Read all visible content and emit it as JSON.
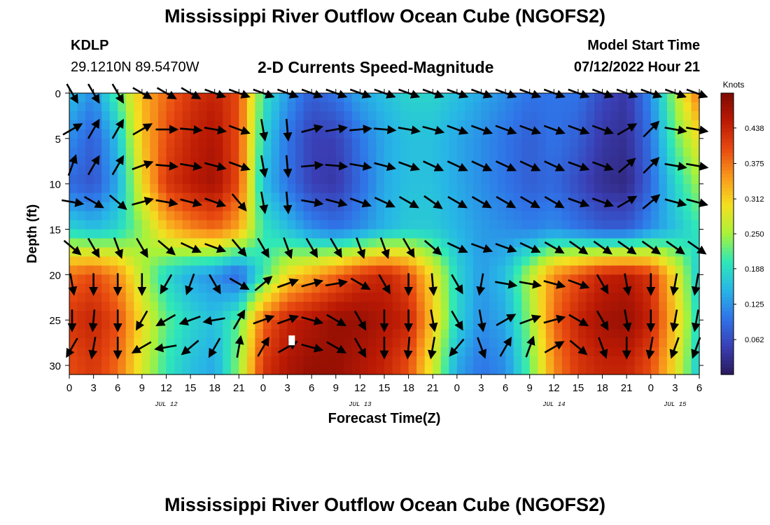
{
  "header": {
    "title": "Mississippi River Outflow Ocean Cube (NGOFS2)",
    "station": "KDLP",
    "coords": "29.1210N  89.5470W",
    "subtitle": "2-D Currents Speed-Magnitude",
    "model_start_label": "Model Start Time",
    "model_start_value": "07/12/2022 Hour 21"
  },
  "footer": {
    "title": "Mississippi River Outflow Ocean Cube (NGOFS2)"
  },
  "chart_data": {
    "type": "heatmap",
    "title": "2-D Currents Speed-Magnitude",
    "xlabel": "Forecast Time(Z)",
    "ylabel": "Depth (ft)",
    "x_unit": "hours from 07/12/2022 00Z",
    "xlim": [
      0,
      78
    ],
    "ylim": [
      0,
      31
    ],
    "y_inverted": true,
    "x_tick_labels": [
      "0",
      "3",
      "6",
      "9",
      "12",
      "15",
      "18",
      "21",
      "0",
      "3",
      "6",
      "9",
      "12",
      "15",
      "18",
      "21",
      "0",
      "3",
      "6",
      "9",
      "12",
      "15",
      "18",
      "21",
      "0",
      "3",
      "6"
    ],
    "date_labels": [
      {
        "label": "JUL 12",
        "hour": 12
      },
      {
        "label": "JUL 13",
        "hour": 36
      },
      {
        "label": "JUL 14",
        "hour": 60
      },
      {
        "label": "JUL 15",
        "hour": 75
      }
    ],
    "y_ticks": [
      0,
      5,
      10,
      15,
      20,
      25,
      30
    ],
    "colorbar": {
      "label": "Knots",
      "ticks": [
        "0.438",
        "0.375",
        "0.312",
        "0.250",
        "0.188",
        "0.125",
        "0.062"
      ],
      "min": 0.0,
      "max": 0.5,
      "colors": [
        "#2a1a5e",
        "#3a3fb5",
        "#2f74e8",
        "#27b6e6",
        "#2ee8b8",
        "#a8f23a",
        "#f4e020",
        "#f99a1c",
        "#e84a10",
        "#bb1a04",
        "#7e0a03"
      ]
    },
    "speed_grid": {
      "hours": [
        0,
        3,
        6,
        9,
        12,
        15,
        18,
        21,
        24,
        27,
        30,
        33,
        36,
        39,
        42,
        45,
        48,
        51,
        54,
        57,
        60,
        63,
        66,
        69,
        72,
        75,
        78
      ],
      "depths": [
        0,
        5,
        10,
        15,
        20,
        25,
        30
      ],
      "values": [
        [
          0.16,
          0.12,
          0.22,
          0.33,
          0.38,
          0.42,
          0.44,
          0.4,
          0.2,
          0.13,
          0.08,
          0.1,
          0.14,
          0.16,
          0.18,
          0.18,
          0.16,
          0.14,
          0.12,
          0.1,
          0.1,
          0.1,
          0.06,
          0.04,
          0.12,
          0.25,
          0.38
        ],
        [
          0.12,
          0.08,
          0.16,
          0.32,
          0.4,
          0.44,
          0.46,
          0.4,
          0.18,
          0.1,
          0.05,
          0.05,
          0.1,
          0.14,
          0.16,
          0.16,
          0.14,
          0.12,
          0.1,
          0.08,
          0.1,
          0.08,
          0.04,
          0.03,
          0.1,
          0.22,
          0.3
        ],
        [
          0.09,
          0.07,
          0.14,
          0.3,
          0.42,
          0.45,
          0.47,
          0.4,
          0.16,
          0.1,
          0.05,
          0.04,
          0.09,
          0.14,
          0.16,
          0.16,
          0.14,
          0.12,
          0.1,
          0.08,
          0.09,
          0.06,
          0.03,
          0.02,
          0.09,
          0.18,
          0.25
        ],
        [
          0.18,
          0.16,
          0.18,
          0.24,
          0.32,
          0.36,
          0.38,
          0.34,
          0.2,
          0.16,
          0.12,
          0.1,
          0.12,
          0.15,
          0.17,
          0.17,
          0.15,
          0.13,
          0.12,
          0.11,
          0.12,
          0.1,
          0.08,
          0.08,
          0.12,
          0.16,
          0.2
        ],
        [
          0.38,
          0.4,
          0.36,
          0.26,
          0.18,
          0.14,
          0.12,
          0.08,
          0.2,
          0.3,
          0.34,
          0.38,
          0.42,
          0.44,
          0.4,
          0.3,
          0.18,
          0.13,
          0.16,
          0.26,
          0.36,
          0.4,
          0.44,
          0.45,
          0.42,
          0.3,
          0.16
        ],
        [
          0.42,
          0.44,
          0.4,
          0.3,
          0.22,
          0.18,
          0.16,
          0.22,
          0.38,
          0.44,
          0.46,
          0.48,
          0.48,
          0.46,
          0.44,
          0.32,
          0.18,
          0.12,
          0.14,
          0.24,
          0.38,
          0.44,
          0.47,
          0.48,
          0.44,
          0.32,
          0.18
        ],
        [
          0.4,
          0.42,
          0.38,
          0.28,
          0.2,
          0.16,
          0.14,
          0.24,
          0.42,
          0.46,
          0.48,
          0.48,
          0.46,
          0.44,
          0.4,
          0.28,
          0.14,
          0.1,
          0.12,
          0.22,
          0.36,
          0.42,
          0.44,
          0.44,
          0.4,
          0.3,
          0.16
        ]
      ]
    },
    "vector_rows": [
      {
        "depth": 0,
        "angles": [
          60,
          60,
          60,
          30,
          30,
          30,
          20,
          20,
          20,
          20,
          20,
          20,
          20,
          20,
          20,
          20,
          20,
          20,
          20,
          20,
          20,
          20,
          20,
          20,
          20,
          20,
          20
        ]
      },
      {
        "depth": 4,
        "angles": [
          -30,
          -60,
          -60,
          -30,
          0,
          5,
          10,
          20,
          80,
          85,
          -15,
          -10,
          -5,
          5,
          10,
          15,
          20,
          20,
          20,
          20,
          20,
          20,
          20,
          -30,
          -45,
          10,
          10
        ]
      },
      {
        "depth": 8,
        "angles": [
          -70,
          -60,
          -60,
          -20,
          5,
          10,
          15,
          20,
          80,
          85,
          -5,
          5,
          10,
          15,
          20,
          25,
          25,
          25,
          25,
          25,
          25,
          20,
          20,
          -40,
          -45,
          10,
          10
        ]
      },
      {
        "depth": 12,
        "angles": [
          10,
          30,
          40,
          -15,
          10,
          15,
          20,
          50,
          80,
          85,
          10,
          15,
          20,
          25,
          30,
          35,
          30,
          30,
          30,
          30,
          30,
          20,
          20,
          -30,
          -40,
          15,
          15
        ]
      },
      {
        "depth": 17,
        "angles": [
          40,
          60,
          70,
          60,
          40,
          25,
          20,
          50,
          60,
          70,
          60,
          60,
          70,
          70,
          60,
          40,
          25,
          20,
          20,
          25,
          30,
          35,
          35,
          35,
          35,
          35,
          35
        ]
      },
      {
        "depth": 21,
        "angles": [
          80,
          90,
          90,
          90,
          120,
          110,
          60,
          30,
          -40,
          -20,
          -15,
          -10,
          30,
          60,
          90,
          85,
          60,
          100,
          10,
          10,
          15,
          20,
          60,
          80,
          90,
          100,
          100
        ]
      },
      {
        "depth": 25,
        "angles": [
          90,
          95,
          90,
          120,
          150,
          160,
          170,
          -60,
          -20,
          -20,
          15,
          30,
          60,
          90,
          90,
          80,
          60,
          80,
          -30,
          -20,
          -15,
          30,
          60,
          80,
          90,
          100,
          100
        ]
      },
      {
        "depth": 28,
        "angles": [
          120,
          100,
          90,
          150,
          170,
          140,
          120,
          -80,
          -60,
          -30,
          15,
          30,
          60,
          90,
          95,
          100,
          130,
          70,
          -60,
          -70,
          -30,
          40,
          70,
          90,
          100,
          110,
          110
        ]
      }
    ]
  }
}
